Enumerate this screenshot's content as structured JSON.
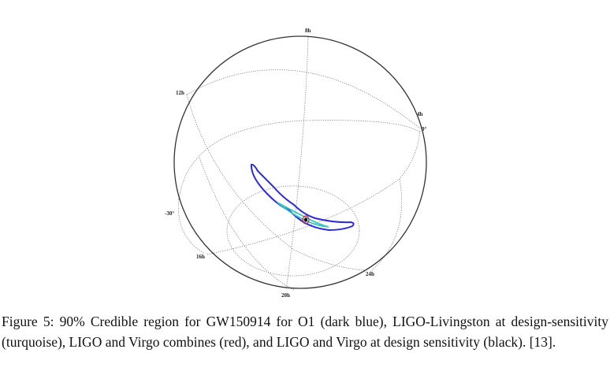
{
  "figure": {
    "grid_labels": {
      "ra": [
        "8h",
        "12h",
        "4h",
        "16h",
        "24h",
        "20h"
      ],
      "dec": [
        "0°",
        "-30°"
      ]
    },
    "contours": [
      {
        "name": "O1",
        "color": "#2a2adf"
      },
      {
        "name": "LIGO-Livingston at design-sensitivity",
        "color": "#2ec4c0"
      },
      {
        "name": "LIGO and Virgo combines",
        "color": "#e02020"
      },
      {
        "name": "LIGO and Virgo at design sensitivity",
        "color": "#000000"
      }
    ]
  },
  "caption": {
    "text": "Figure 5: 90% Credible region for GW150914 for O1 (dark blue), LIGO-Livingston at design-sensitivity (turquoise), LIGO and Virgo combines (red), and LIGO and Virgo at design sensitivity (black). [13]."
  }
}
